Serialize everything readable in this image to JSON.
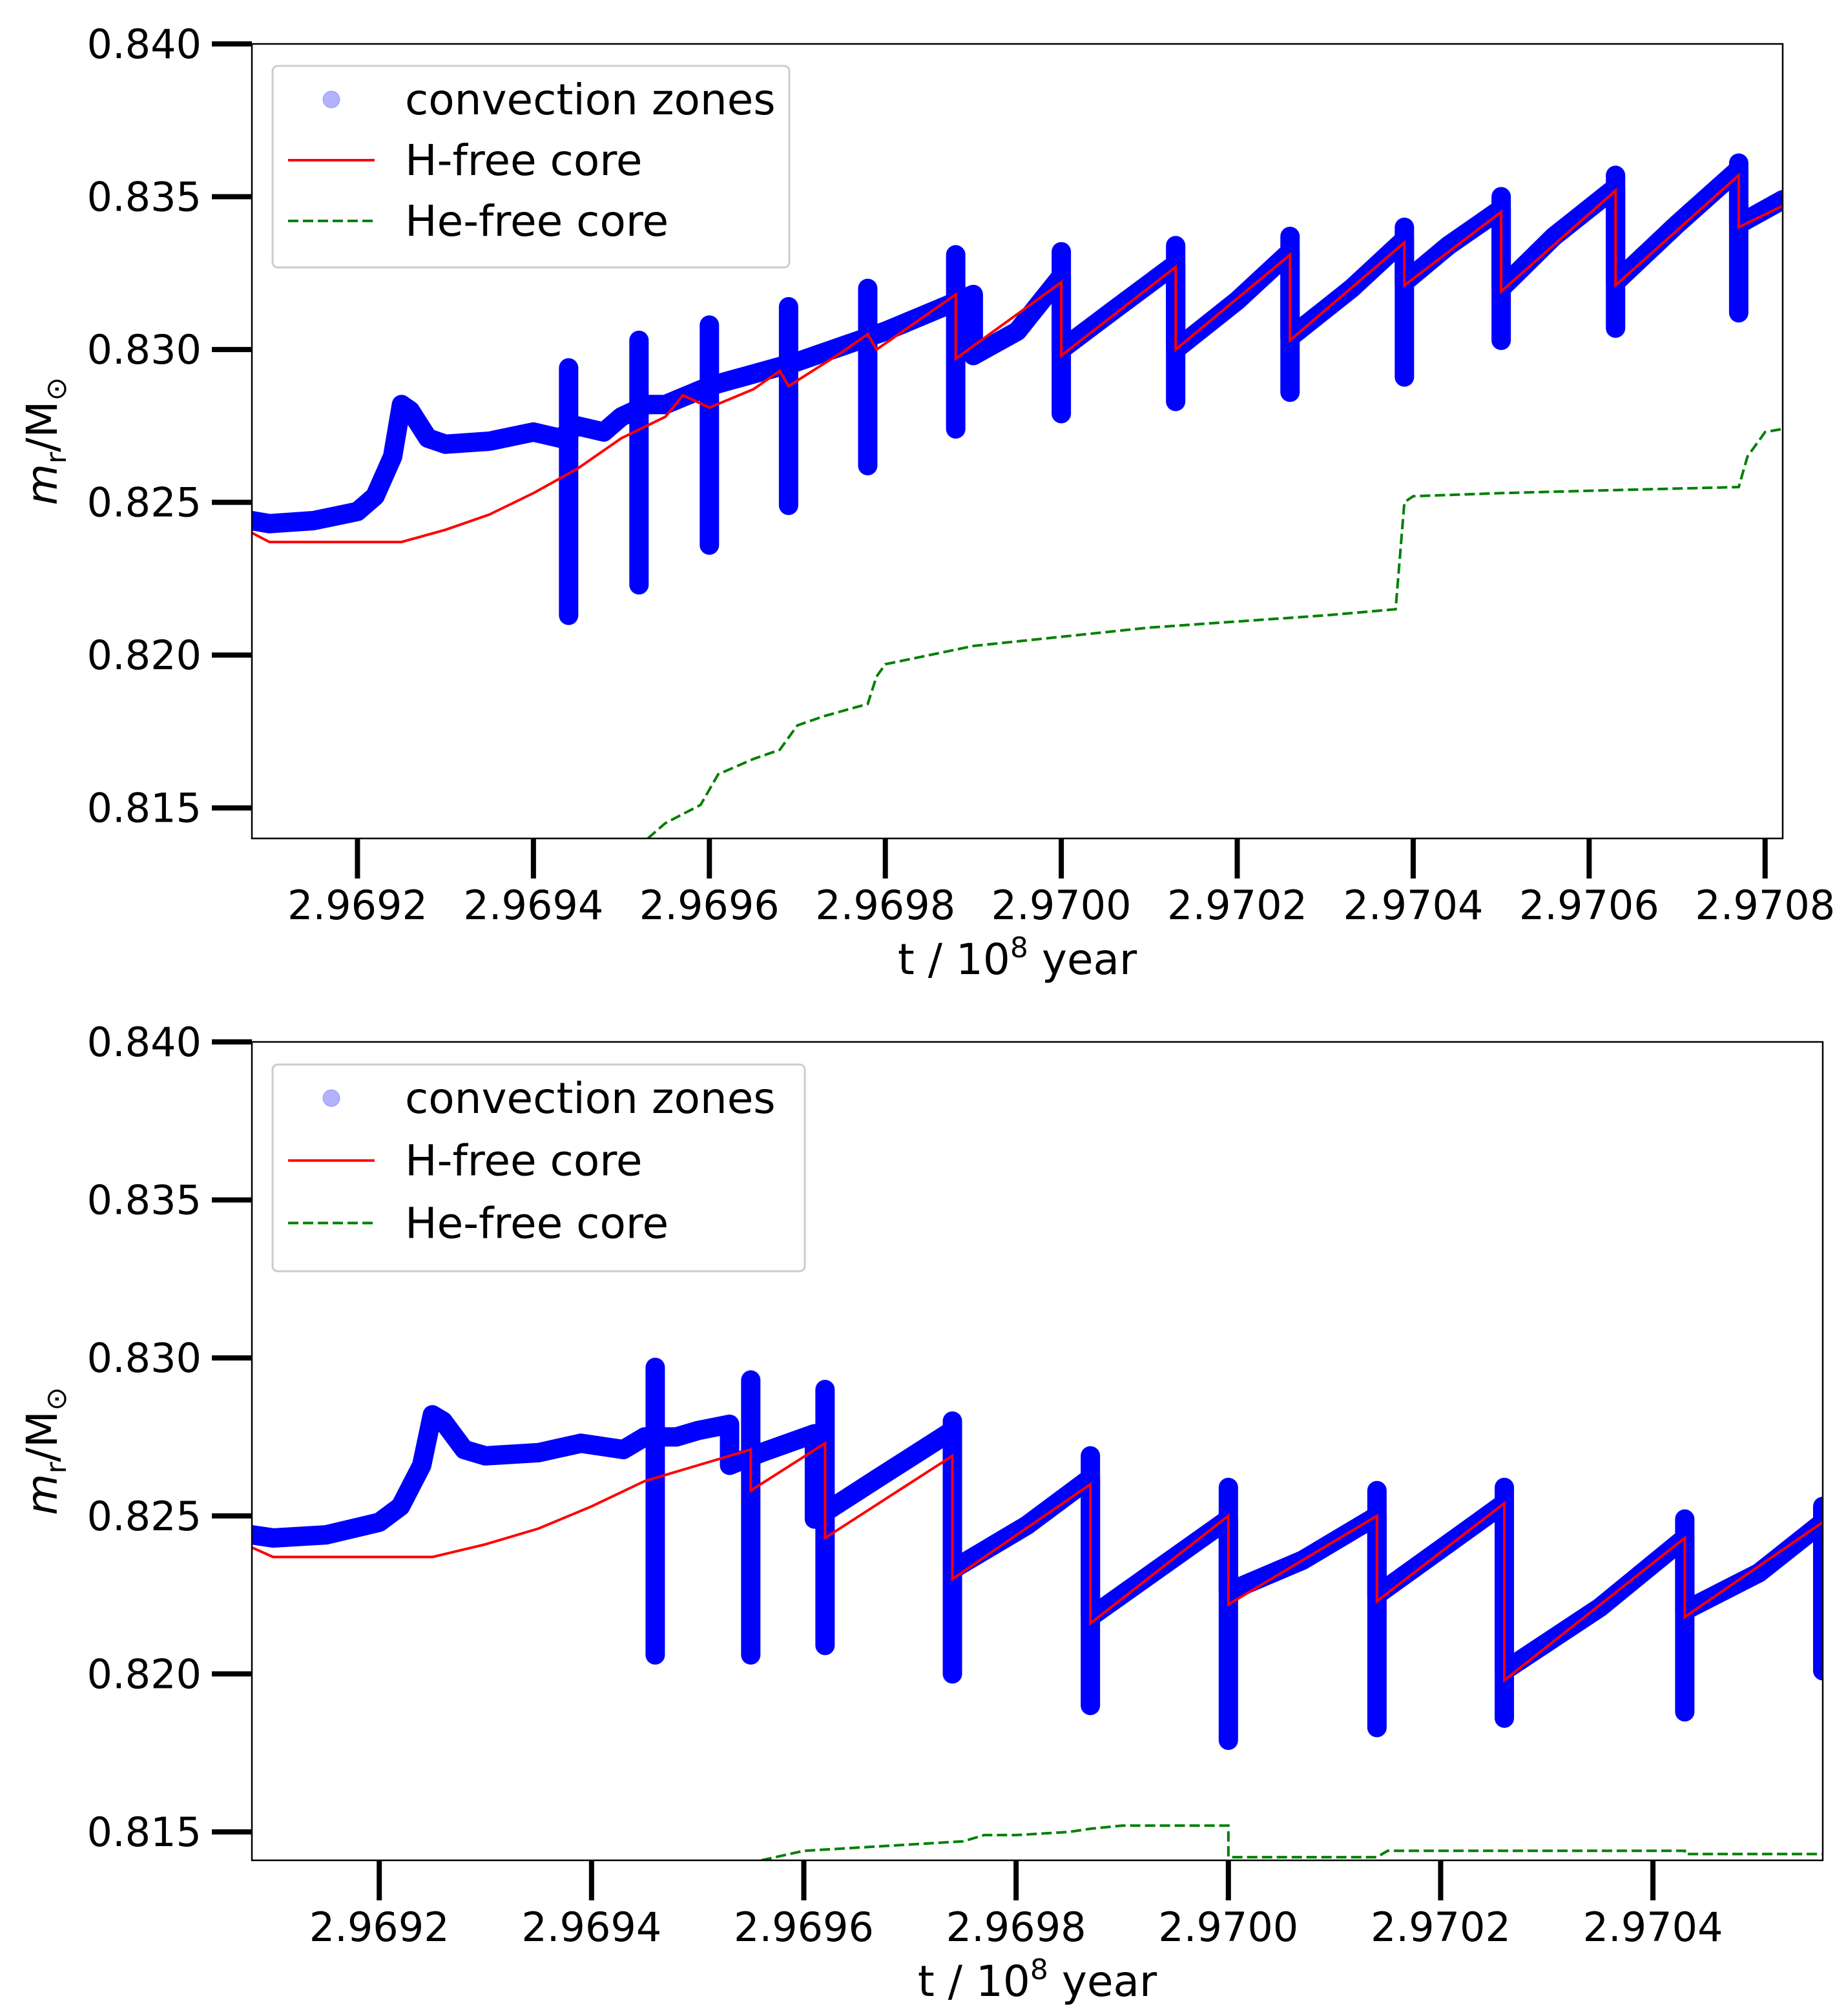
{
  "chart_data": [
    {
      "type": "line",
      "panel": "top",
      "xlabel": "t / 10^8 year",
      "xlabel_main": "t / 10",
      "xlabel_sup": "8",
      "xlabel_tail": " year",
      "ylabel": "m_r/M_sun",
      "ylabel_m": "m",
      "ylabel_sub": "r",
      "ylabel_mid": "/M",
      "ylabel_sun": "⊙",
      "xlim": [
        2.96908,
        2.97082
      ],
      "ylim": [
        0.814,
        0.84
      ],
      "xticks": [
        "2.9692",
        "2.9694",
        "2.9696",
        "2.9698",
        "2.9700",
        "2.9702",
        "2.9704",
        "2.9706",
        "2.9708"
      ],
      "yticks": [
        "0.840",
        "0.835",
        "0.830",
        "0.825",
        "0.820",
        "0.815"
      ],
      "legend": {
        "placement": "top-left",
        "entries": [
          "convection zones",
          "H-free core",
          "He-free core"
        ]
      },
      "series": [
        {
          "name": "convection zones",
          "style": "markers",
          "color": "#0000ff",
          "points": [
            [
              2.96908,
              0.8244
            ],
            [
              2.9691,
              0.8243
            ],
            [
              2.96915,
              0.8244
            ],
            [
              2.9692,
              0.8247
            ],
            [
              2.96922,
              0.8252
            ],
            [
              2.96924,
              0.8265
            ],
            [
              2.96925,
              0.8282
            ],
            [
              2.96926,
              0.828
            ],
            [
              2.96928,
              0.8271
            ],
            [
              2.9693,
              0.8269
            ],
            [
              2.96935,
              0.827
            ],
            [
              2.9694,
              0.8273
            ],
            [
              2.96943,
              0.8271
            ],
            [
              2.96945,
              0.8275
            ],
            [
              2.96948,
              0.8273
            ],
            [
              2.9695,
              0.8278
            ],
            [
              2.96953,
              0.8282
            ],
            [
              2.96955,
              0.8282
            ],
            [
              2.9696,
              0.8288
            ],
            [
              2.96965,
              0.8292
            ],
            [
              2.9697,
              0.8296
            ],
            [
              2.96975,
              0.8301
            ],
            [
              2.9698,
              0.8306
            ],
            [
              2.96985,
              0.8312
            ],
            [
              2.9699,
              0.8318
            ],
            [
              2.9699,
              0.8298
            ],
            [
              2.96995,
              0.8306
            ],
            [
              2.97,
              0.8324
            ],
            [
              2.97,
              0.83
            ],
            [
              2.97006,
              0.8313
            ],
            [
              2.97013,
              0.8328
            ],
            [
              2.97013,
              0.83
            ],
            [
              2.9702,
              0.8316
            ],
            [
              2.97026,
              0.8332
            ],
            [
              2.97026,
              0.8304
            ],
            [
              2.97033,
              0.832
            ],
            [
              2.97039,
              0.8336
            ],
            [
              2.97039,
              0.8322
            ],
            [
              2.97044,
              0.8334
            ],
            [
              2.9705,
              0.8346
            ],
            [
              2.9705,
              0.832
            ],
            [
              2.97056,
              0.8337
            ],
            [
              2.97063,
              0.8353
            ],
            [
              2.97063,
              0.8322
            ],
            [
              2.9707,
              0.8341
            ],
            [
              2.97077,
              0.8359
            ],
            [
              2.97077,
              0.8341
            ],
            [
              2.97082,
              0.8349
            ]
          ],
          "spikes": [
            [
              2.96944,
              0.8213,
              0.8294
            ],
            [
              2.96952,
              0.8223,
              0.8303
            ],
            [
              2.9696,
              0.8236,
              0.8308
            ],
            [
              2.96969,
              0.8249,
              0.8314
            ],
            [
              2.96978,
              0.8262,
              0.832
            ],
            [
              2.96988,
              0.8274,
              0.8331
            ],
            [
              2.97,
              0.8279,
              0.8332
            ],
            [
              2.97013,
              0.8283,
              0.8334
            ],
            [
              2.97026,
              0.8286,
              0.8337
            ],
            [
              2.97039,
              0.8291,
              0.834
            ],
            [
              2.9705,
              0.8303,
              0.835
            ],
            [
              2.97063,
              0.8307,
              0.8357
            ],
            [
              2.97077,
              0.8312,
              0.8361
            ]
          ]
        },
        {
          "name": "H-free core",
          "style": "solid",
          "color": "#ff0000",
          "points": [
            [
              2.96908,
              0.824
            ],
            [
              2.9691,
              0.8237
            ],
            [
              2.9692,
              0.8237
            ],
            [
              2.96925,
              0.8237
            ],
            [
              2.9693,
              0.8241
            ],
            [
              2.96935,
              0.8246
            ],
            [
              2.9694,
              0.8253
            ],
            [
              2.96945,
              0.8261
            ],
            [
              2.9695,
              0.8271
            ],
            [
              2.96955,
              0.8278
            ],
            [
              2.96957,
              0.8285
            ],
            [
              2.9696,
              0.8281
            ],
            [
              2.96965,
              0.8287
            ],
            [
              2.96968,
              0.8293
            ],
            [
              2.96969,
              0.8288
            ],
            [
              2.96975,
              0.8299
            ],
            [
              2.96978,
              0.8305
            ],
            [
              2.96979,
              0.83
            ],
            [
              2.96988,
              0.8318
            ],
            [
              2.96988,
              0.8297
            ],
            [
              2.97,
              0.8322
            ],
            [
              2.97,
              0.8298
            ],
            [
              2.97013,
              0.8327
            ],
            [
              2.97013,
              0.83
            ],
            [
              2.97026,
              0.8331
            ],
            [
              2.97026,
              0.8303
            ],
            [
              2.97039,
              0.8335
            ],
            [
              2.97039,
              0.8321
            ],
            [
              2.9705,
              0.8345
            ],
            [
              2.9705,
              0.8319
            ],
            [
              2.97063,
              0.8352
            ],
            [
              2.97063,
              0.8321
            ],
            [
              2.97077,
              0.8357
            ],
            [
              2.97077,
              0.834
            ],
            [
              2.97082,
              0.8347
            ]
          ]
        },
        {
          "name": "He-free core",
          "style": "dashed",
          "color": "#008000",
          "points": [
            [
              2.96953,
              0.814
            ],
            [
              2.96955,
              0.8145
            ],
            [
              2.96959,
              0.8151
            ],
            [
              2.96961,
              0.8161
            ],
            [
              2.96965,
              0.8166
            ],
            [
              2.96968,
              0.8169
            ],
            [
              2.9697,
              0.8177
            ],
            [
              2.96973,
              0.818
            ],
            [
              2.96978,
              0.8184
            ],
            [
              2.96979,
              0.8193
            ],
            [
              2.9698,
              0.8197
            ],
            [
              2.96985,
              0.82
            ],
            [
              2.9699,
              0.8203
            ],
            [
              2.97,
              0.8206
            ],
            [
              2.9701,
              0.8209
            ],
            [
              2.9702,
              0.8211
            ],
            [
              2.9703,
              0.8213
            ],
            [
              2.97038,
              0.8215
            ],
            [
              2.97039,
              0.825
            ],
            [
              2.9704,
              0.8252
            ],
            [
              2.9705,
              0.8253
            ],
            [
              2.97063,
              0.8254
            ],
            [
              2.97077,
              0.8255
            ],
            [
              2.97078,
              0.8265
            ],
            [
              2.9708,
              0.8273
            ],
            [
              2.97082,
              0.8274
            ]
          ]
        }
      ]
    },
    {
      "type": "line",
      "panel": "bottom",
      "xlabel": "t / 10^8 year",
      "xlabel_main": "t / 10",
      "xlabel_sup": "8",
      "xlabel_tail": " year",
      "ylabel": "m_r/M_sun",
      "ylabel_m": "m",
      "ylabel_sub": "r",
      "ylabel_mid": "/M",
      "ylabel_sun": "⊙",
      "xlim": [
        2.96908,
        2.97056
      ],
      "ylim": [
        0.8141,
        0.84
      ],
      "xticks": [
        "2.9692",
        "2.9694",
        "2.9696",
        "2.9698",
        "2.9700",
        "2.9702",
        "2.9704"
      ],
      "yticks": [
        "0.840",
        "0.835",
        "0.830",
        "0.825",
        "0.820",
        "0.815"
      ],
      "legend": {
        "placement": "top-left",
        "entries": [
          "convection zones",
          "H-free core",
          "He-free core"
        ]
      },
      "series": [
        {
          "name": "convection zones",
          "style": "markers",
          "color": "#0000ff",
          "points": [
            [
              2.96908,
              0.8244
            ],
            [
              2.9691,
              0.8243
            ],
            [
              2.96915,
              0.8244
            ],
            [
              2.9692,
              0.8248
            ],
            [
              2.96922,
              0.8253
            ],
            [
              2.96924,
              0.8266
            ],
            [
              2.96925,
              0.8282
            ],
            [
              2.96926,
              0.828
            ],
            [
              2.96928,
              0.8271
            ],
            [
              2.9693,
              0.8269
            ],
            [
              2.96935,
              0.827
            ],
            [
              2.96939,
              0.8273
            ],
            [
              2.96943,
              0.8271
            ],
            [
              2.96945,
              0.8275
            ],
            [
              2.96948,
              0.8275
            ],
            [
              2.9695,
              0.8277
            ],
            [
              2.96953,
              0.8279
            ],
            [
              2.96953,
              0.8266
            ],
            [
              2.96956,
              0.827
            ],
            [
              2.96961,
              0.8276
            ],
            [
              2.96961,
              0.8249
            ],
            [
              2.96967,
              0.8262
            ],
            [
              2.96974,
              0.8277
            ],
            [
              2.96974,
              0.8233
            ],
            [
              2.96981,
              0.8247
            ],
            [
              2.96987,
              0.8262
            ],
            [
              2.96987,
              0.8218
            ],
            [
              2.97,
              0.8249
            ],
            [
              2.97,
              0.8226
            ],
            [
              2.97007,
              0.8236
            ],
            [
              2.97014,
              0.825
            ],
            [
              2.97014,
              0.8225
            ],
            [
              2.97026,
              0.8254
            ],
            [
              2.97026,
              0.8201
            ],
            [
              2.97035,
              0.8221
            ],
            [
              2.97043,
              0.8243
            ],
            [
              2.97043,
              0.822
            ],
            [
              2.9705,
              0.8232
            ],
            [
              2.97056,
              0.8248
            ]
          ],
          "spikes": [
            [
              2.96946,
              0.8206,
              0.8297
            ],
            [
              2.96955,
              0.8206,
              0.8293
            ],
            [
              2.96962,
              0.8209,
              0.829
            ],
            [
              2.96974,
              0.82,
              0.828
            ],
            [
              2.96987,
              0.819,
              0.8269
            ],
            [
              2.97,
              0.8179,
              0.8259
            ],
            [
              2.97014,
              0.8183,
              0.8258
            ],
            [
              2.97026,
              0.8186,
              0.8259
            ],
            [
              2.97043,
              0.8188,
              0.8249
            ],
            [
              2.97056,
              0.8201,
              0.8253
            ]
          ]
        },
        {
          "name": "H-free core",
          "style": "solid",
          "color": "#ff0000",
          "points": [
            [
              2.96908,
              0.824
            ],
            [
              2.9691,
              0.8237
            ],
            [
              2.9692,
              0.8237
            ],
            [
              2.96925,
              0.8237
            ],
            [
              2.9693,
              0.8241
            ],
            [
              2.96935,
              0.8246
            ],
            [
              2.9694,
              0.8253
            ],
            [
              2.96945,
              0.8261
            ],
            [
              2.9695,
              0.8266
            ],
            [
              2.96955,
              0.8271
            ],
            [
              2.96955,
              0.8258
            ],
            [
              2.96962,
              0.8273
            ],
            [
              2.96962,
              0.8243
            ],
            [
              2.96974,
              0.8269
            ],
            [
              2.96974,
              0.823
            ],
            [
              2.96987,
              0.826
            ],
            [
              2.96987,
              0.8216
            ],
            [
              2.97,
              0.825
            ],
            [
              2.97,
              0.8222
            ],
            [
              2.97014,
              0.825
            ],
            [
              2.97014,
              0.8223
            ],
            [
              2.97026,
              0.8254
            ],
            [
              2.97026,
              0.8198
            ],
            [
              2.97043,
              0.8243
            ],
            [
              2.97043,
              0.8218
            ],
            [
              2.97056,
              0.8248
            ]
          ]
        },
        {
          "name": "He-free core",
          "style": "dashed",
          "color": "#008000",
          "points": [
            [
              2.96956,
              0.8141
            ],
            [
              2.9696,
              0.8144
            ],
            [
              2.96965,
              0.8145
            ],
            [
              2.9697,
              0.8146
            ],
            [
              2.96975,
              0.8147
            ],
            [
              2.96977,
              0.8149
            ],
            [
              2.9698,
              0.8149
            ],
            [
              2.96985,
              0.815
            ],
            [
              2.96987,
              0.8151
            ],
            [
              2.9699,
              0.8152
            ],
            [
              2.97,
              0.8152
            ],
            [
              2.97,
              0.8142
            ],
            [
              2.97005,
              0.8142
            ],
            [
              2.97014,
              0.8142
            ],
            [
              2.97015,
              0.8144
            ],
            [
              2.97026,
              0.8144
            ],
            [
              2.97043,
              0.8144
            ],
            [
              2.97043,
              0.8143
            ],
            [
              2.97056,
              0.8143
            ]
          ]
        }
      ]
    }
  ]
}
